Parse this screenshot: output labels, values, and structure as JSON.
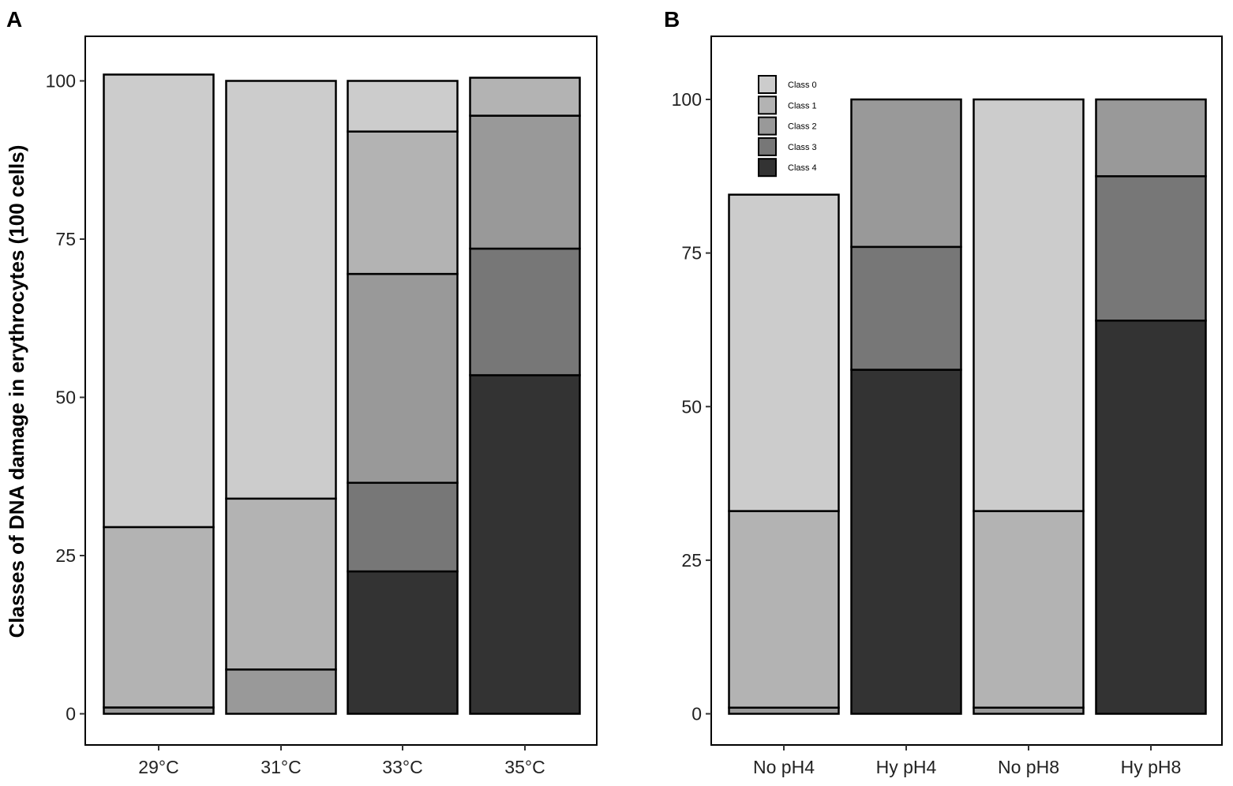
{
  "figure": {
    "ylabel": "Classes of DNA damage in erythrocytes (100 cells)"
  },
  "colors": {
    "class_0": "#cccccc",
    "class_1": "#b3b3b3",
    "class_2": "#999999",
    "class_3": "#777777",
    "class_4": "#333333",
    "frame": "#000000"
  },
  "chart_data": [
    {
      "panel": "A",
      "type": "bar",
      "stacked": true,
      "categories": [
        "29°C",
        "31°C",
        "33°C",
        "35°C"
      ],
      "yticks": [
        "0",
        "25",
        "50",
        "75",
        "100"
      ],
      "ylim": [
        -4,
        107
      ],
      "ylabel": "Classes of DNA damage in erythrocytes (100 cells)",
      "xlabel": "",
      "grid": false,
      "series": [
        {
          "name": "Class 0",
          "values": [
            71.5,
            66,
            8,
            0
          ]
        },
        {
          "name": "Class 1",
          "values": [
            28.5,
            27,
            22.5,
            6
          ]
        },
        {
          "name": "Class 2",
          "values": [
            1,
            7,
            33,
            21
          ]
        },
        {
          "name": "Class 3",
          "values": [
            0,
            0,
            14,
            20
          ]
        },
        {
          "name": "Class 4",
          "values": [
            0,
            0,
            22.5,
            53.5
          ]
        }
      ]
    },
    {
      "panel": "B",
      "type": "bar",
      "stacked": true,
      "categories": [
        "No pH4",
        "Hy pH4",
        "No pH8",
        "Hy pH8"
      ],
      "yticks": [
        "0",
        "25",
        "50",
        "75",
        "100"
      ],
      "ylim": [
        -5,
        110
      ],
      "xlabel": "",
      "grid": false,
      "legend_position": "top-left",
      "series": [
        {
          "name": "Class 0",
          "values": [
            51.5,
            0,
            67,
            0
          ]
        },
        {
          "name": "Class 1",
          "values": [
            32,
            0,
            32,
            0
          ]
        },
        {
          "name": "Class 2",
          "values": [
            1,
            24,
            1,
            12.5
          ]
        },
        {
          "name": "Class 3",
          "values": [
            0,
            20,
            0,
            23.5
          ]
        },
        {
          "name": "Class 4",
          "values": [
            0,
            56,
            0,
            64
          ]
        }
      ]
    }
  ]
}
